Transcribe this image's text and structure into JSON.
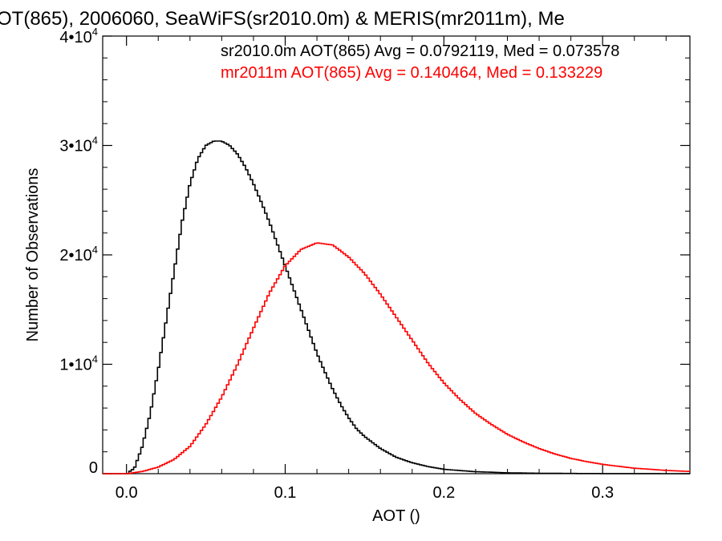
{
  "chart_data": {
    "type": "line",
    "title": "OT(865), 2006060, SeaWiFS(sr2010.0m) & MERIS(mr2011m), Me",
    "xlabel": "AOT ()",
    "ylabel": "Number of Observations",
    "xlim": [
      -0.015,
      0.355
    ],
    "ylim": [
      0,
      40000
    ],
    "x_ticks": [
      {
        "value": 0.0,
        "label": "0.0"
      },
      {
        "value": 0.1,
        "label": "0.1"
      },
      {
        "value": 0.2,
        "label": "0.2"
      },
      {
        "value": 0.3,
        "label": "0.3"
      }
    ],
    "y_ticks": [
      {
        "value": 0,
        "label": "0",
        "exp": ""
      },
      {
        "value": 10000,
        "label": "1•10",
        "exp": "4"
      },
      {
        "value": 20000,
        "label": "2•10",
        "exp": "4"
      },
      {
        "value": 30000,
        "label": "3•10",
        "exp": "4"
      },
      {
        "value": 40000,
        "label": "4•10",
        "exp": "4"
      }
    ],
    "legend": [
      {
        "text": "sr2010.0m AOT(865) Avg = 0.0792119, Med = 0.073578",
        "color": "#000000"
      },
      {
        "text": "mr2011m AOT(865) Avg = 0.140464, Med = 0.133229",
        "color": "#ff0000"
      }
    ],
    "series": [
      {
        "color": "#000000",
        "x": [
          0.0,
          0.005,
          0.01,
          0.015,
          0.02,
          0.025,
          0.03,
          0.035,
          0.04,
          0.045,
          0.05,
          0.055,
          0.06,
          0.065,
          0.07,
          0.075,
          0.08,
          0.085,
          0.09,
          0.095,
          0.1,
          0.105,
          0.11,
          0.115,
          0.12,
          0.125,
          0.13,
          0.135,
          0.14,
          0.145,
          0.15,
          0.16,
          0.17,
          0.18,
          0.19,
          0.2,
          0.22,
          0.24,
          0.26,
          0.28,
          0.3,
          0.33,
          0.355
        ],
        "y": [
          0,
          500,
          2500,
          5500,
          9500,
          14000,
          18500,
          23000,
          26500,
          28800,
          30000,
          30400,
          30400,
          30000,
          29200,
          28000,
          26500,
          24800,
          23000,
          21000,
          19000,
          17000,
          15000,
          13000,
          11000,
          9300,
          7700,
          6300,
          5100,
          4100,
          3400,
          2300,
          1500,
          1000,
          650,
          400,
          180,
          80,
          40,
          20,
          10,
          5,
          0
        ]
      },
      {
        "color": "#ff0000",
        "x": [
          0.0,
          0.01,
          0.02,
          0.03,
          0.04,
          0.05,
          0.06,
          0.07,
          0.08,
          0.09,
          0.1,
          0.11,
          0.12,
          0.13,
          0.14,
          0.15,
          0.16,
          0.17,
          0.18,
          0.19,
          0.2,
          0.21,
          0.22,
          0.23,
          0.24,
          0.25,
          0.26,
          0.27,
          0.28,
          0.29,
          0.3,
          0.32,
          0.34,
          0.355
        ],
        "y": [
          0,
          200,
          600,
          1300,
          2500,
          4500,
          7000,
          10000,
          13300,
          16500,
          19000,
          20500,
          21100,
          20900,
          19800,
          18300,
          16400,
          14300,
          12200,
          10100,
          8300,
          6800,
          5500,
          4500,
          3600,
          2900,
          2300,
          1800,
          1400,
          1100,
          850,
          500,
          300,
          200
        ]
      }
    ]
  }
}
